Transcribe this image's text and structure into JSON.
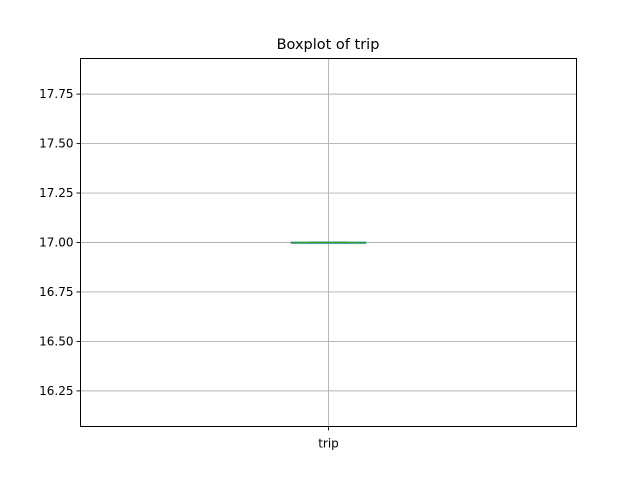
{
  "chart_data": {
    "type": "box",
    "title": "Boxplot of trip",
    "categories": [
      "trip"
    ],
    "series": [
      {
        "name": "trip",
        "min": 17.0,
        "q1": 17.0,
        "median": 17.0,
        "q3": 17.0,
        "max": 17.0
      }
    ],
    "ylim": [
      16.07,
      17.93
    ],
    "yticks": [
      16.25,
      16.5,
      16.75,
      17.0,
      17.25,
      17.5,
      17.75
    ],
    "ytick_labels": [
      "16.25",
      "16.50",
      "16.75",
      "17.00",
      "17.25",
      "17.50",
      "17.75"
    ],
    "grid": true,
    "colors": {
      "box": "#1f77b4",
      "median": "#2ca02c",
      "whisker": "#1f77b4",
      "grid": "#b0b0b0"
    }
  }
}
